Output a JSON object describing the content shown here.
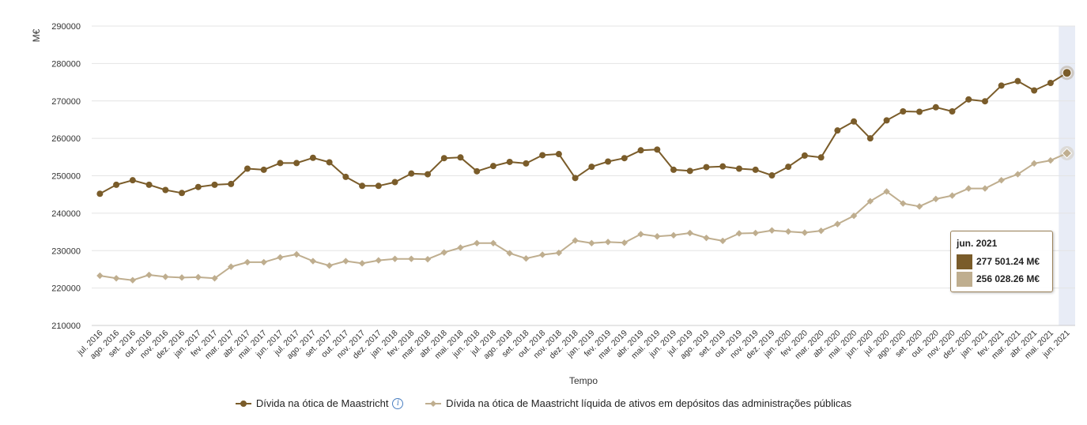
{
  "chart_data": {
    "type": "line",
    "ylabel": "M€",
    "xlabel": "Tempo",
    "ylim": [
      210000,
      290000
    ],
    "yticks": [
      210000,
      220000,
      230000,
      240000,
      250000,
      260000,
      270000,
      280000,
      290000
    ],
    "grid": "horizontal",
    "legend_position": "bottom",
    "categories": [
      "jul. 2016",
      "ago. 2016",
      "set. 2016",
      "out. 2016",
      "nov. 2016",
      "dez. 2016",
      "jan. 2017",
      "fev. 2017",
      "mar. 2017",
      "abr. 2017",
      "mai. 2017",
      "jun. 2017",
      "jul. 2017",
      "ago. 2017",
      "set. 2017",
      "out. 2017",
      "nov. 2017",
      "dez. 2017",
      "jan. 2018",
      "fev. 2018",
      "mar. 2018",
      "abr. 2018",
      "mai. 2018",
      "jun. 2018",
      "jul. 2018",
      "ago. 2018",
      "set. 2018",
      "out. 2018",
      "nov. 2018",
      "dez. 2018",
      "jan. 2019",
      "fev. 2019",
      "mar. 2019",
      "abr. 2019",
      "mai. 2019",
      "jun. 2019",
      "jul. 2019",
      "ago. 2019",
      "set. 2019",
      "out. 2019",
      "nov. 2019",
      "dez. 2019",
      "jan. 2020",
      "fev. 2020",
      "mar. 2020",
      "abr. 2020",
      "mai. 2020",
      "jun. 2020",
      "jul. 2020",
      "ago. 2020",
      "set. 2020",
      "out. 2020",
      "nov. 2020",
      "dez. 2020",
      "jan. 2021",
      "fev. 2021",
      "mar. 2021",
      "abr. 2021",
      "mai. 2021",
      "jun. 2021"
    ],
    "series": [
      {
        "name": "Dívida na ótica de Maastricht",
        "color": "#7a5c2a",
        "marker": "circle",
        "values": [
          245200,
          247600,
          248800,
          247600,
          246200,
          245400,
          247000,
          247600,
          247800,
          251900,
          251600,
          253400,
          253400,
          254800,
          253600,
          249700,
          247300,
          247300,
          248300,
          250600,
          250400,
          254700,
          254900,
          251200,
          252600,
          253700,
          253300,
          255500,
          255800,
          249400,
          252400,
          253800,
          254700,
          256800,
          257000,
          251600,
          251300,
          252300,
          252500,
          251900,
          251600,
          250100,
          252400,
          255400,
          254900,
          262100,
          264500,
          260000,
          264800,
          267200,
          267100,
          268300,
          267200,
          270400,
          269900,
          274100,
          275300,
          272800,
          274800,
          277501.24
        ]
      },
      {
        "name": "Dívida na ótica de Maastricht líquida de ativos em depósitos das administrações públicas",
        "color": "#bfae8f",
        "marker": "diamond",
        "values": [
          223300,
          222600,
          222100,
          223500,
          223000,
          222800,
          222900,
          222600,
          225700,
          226900,
          226900,
          228200,
          229000,
          227200,
          226000,
          227200,
          226600,
          227400,
          227800,
          227800,
          227700,
          229500,
          230800,
          232000,
          232000,
          229300,
          227900,
          228900,
          229400,
          232700,
          232000,
          232300,
          232100,
          234400,
          233800,
          234100,
          234700,
          233400,
          232600,
          234600,
          234700,
          235400,
          235100,
          234800,
          235300,
          237100,
          239300,
          243200,
          245800,
          242600,
          241800,
          243800,
          244700,
          246600,
          246600,
          248800,
          250400,
          253300,
          254100,
          256028.26
        ]
      }
    ]
  },
  "tooltip": {
    "title": "jun. 2021",
    "series1_value": "277 501.24 M€",
    "series2_value": "256 028.26 M€"
  },
  "legend": {
    "item1": "Dívida na ótica de Maastricht",
    "item2": "Dívida na ótica de Maastricht líquida de ativos em depósitos das administrações públicas",
    "info_icon": "info-icon"
  }
}
